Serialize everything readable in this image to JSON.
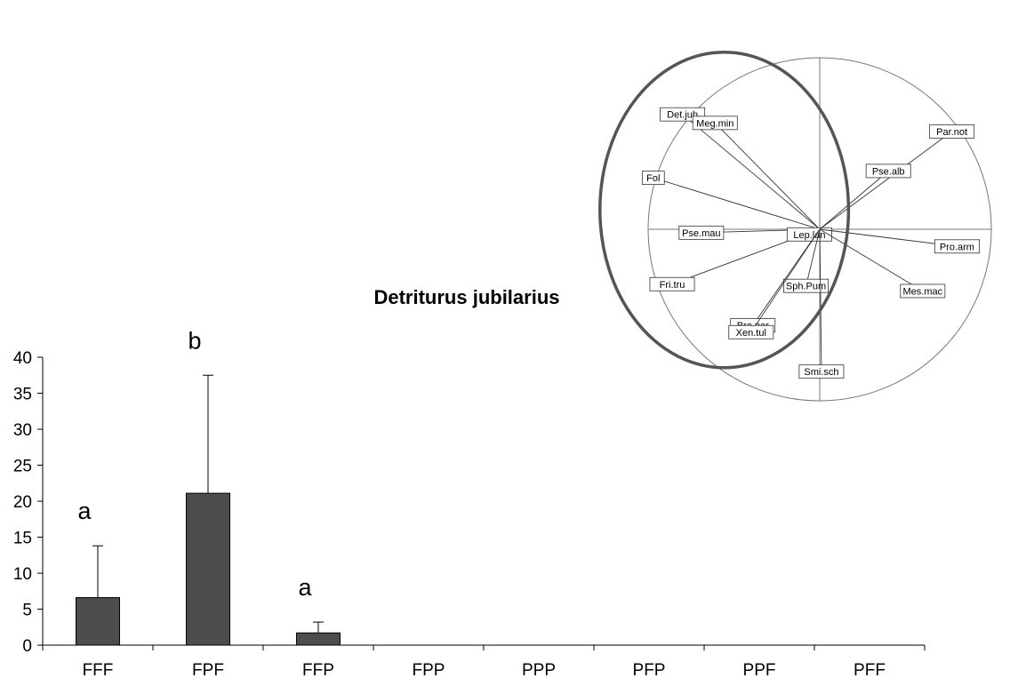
{
  "chart_data": [
    {
      "type": "bar",
      "title": "Detriturus jubilarius",
      "categories": [
        "FFF",
        "FPF",
        "FFP",
        "FPP",
        "PPP",
        "PFP",
        "PPF",
        "PFF"
      ],
      "values": [
        6.6,
        21.1,
        1.7,
        0,
        0,
        0,
        0,
        0
      ],
      "error_upper": [
        13.8,
        37.5,
        3.2,
        null,
        null,
        null,
        null,
        null
      ],
      "significance_letters": [
        "a",
        "b",
        "a",
        "",
        "",
        "",
        "",
        ""
      ],
      "yticks": [
        "0",
        "5",
        "10",
        "15",
        "20",
        "25",
        "30",
        "35",
        "40"
      ],
      "ylim": [
        0,
        40
      ],
      "grid": false,
      "bar_color": "#4d4d4d"
    },
    {
      "type": "scatter",
      "subtype": "correlation-circle",
      "ylim": [
        -1,
        1
      ],
      "xlim": [
        -1,
        1
      ],
      "highlighted_group": [
        "Det.jub",
        "Meg.min",
        "Fol",
        "Pse.mau",
        "Fri.tru",
        "Lep.lan"
      ],
      "vectors": [
        {
          "label": "Det.jub",
          "x": -0.8,
          "y": 0.67
        },
        {
          "label": "Meg.min",
          "x": -0.61,
          "y": 0.62
        },
        {
          "label": "Fol",
          "x": -0.97,
          "y": 0.3
        },
        {
          "label": "Pse.mau",
          "x": -0.69,
          "y": -0.02
        },
        {
          "label": "Fri.tru",
          "x": -0.86,
          "y": -0.32
        },
        {
          "label": "Lep.lan",
          "x": -0.06,
          "y": -0.03
        },
        {
          "label": "Sph.Pum",
          "x": -0.08,
          "y": -0.33
        },
        {
          "label": "Bra.par",
          "x": -0.39,
          "y": -0.56
        },
        {
          "label": "Xen.tul",
          "x": -0.4,
          "y": -0.6
        },
        {
          "label": "Smi.sch",
          "x": 0.01,
          "y": -0.83
        },
        {
          "label": "Par.not",
          "x": 0.77,
          "y": 0.57
        },
        {
          "label": "Pse.alb",
          "x": 0.4,
          "y": 0.34
        },
        {
          "label": "Pro.arm",
          "x": 0.8,
          "y": -0.1
        },
        {
          "label": "Mes.mac",
          "x": 0.6,
          "y": -0.36
        }
      ]
    }
  ]
}
